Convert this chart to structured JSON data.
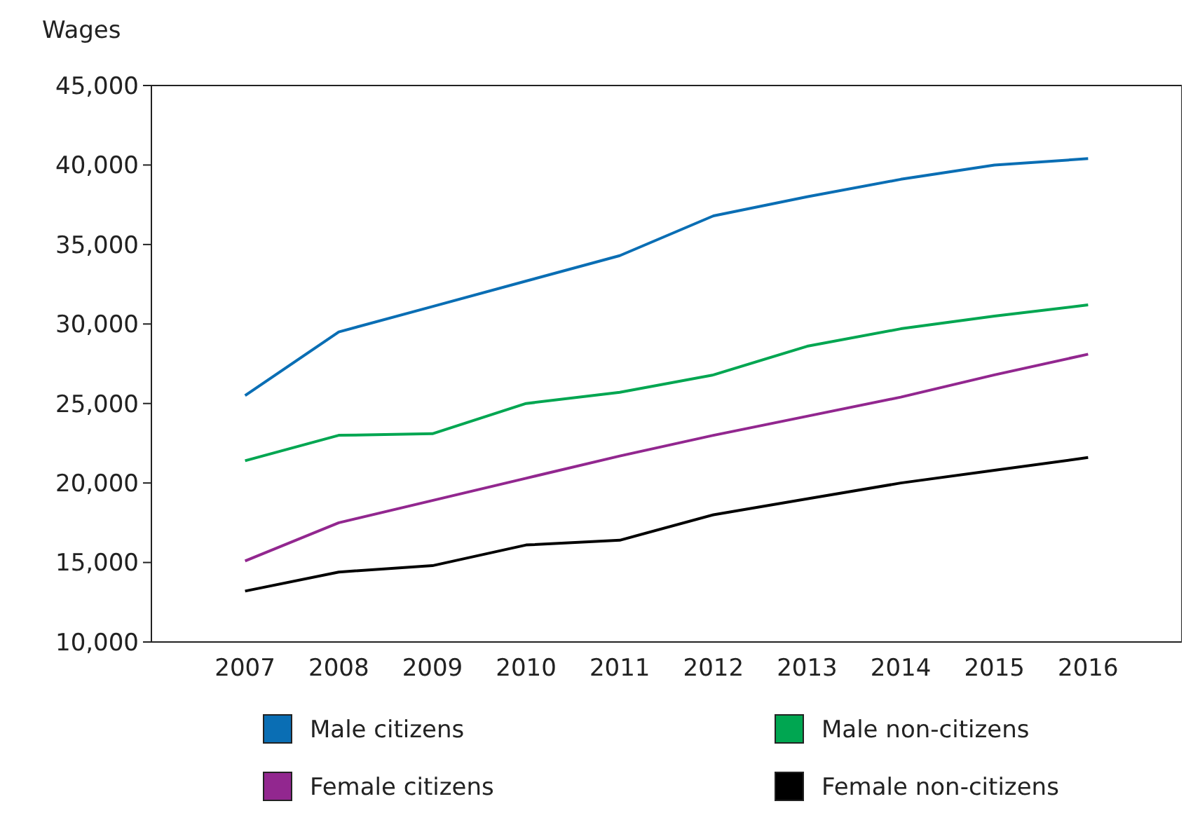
{
  "chart_data": {
    "type": "line",
    "ylabel": "Wages",
    "categories": [
      "2007",
      "2008",
      "2009",
      "2010",
      "2011",
      "2012",
      "2013",
      "2014",
      "2015",
      "2016"
    ],
    "series": [
      {
        "name": "Male citizens",
        "color": "#0a6eb4",
        "values": [
          25500,
          29500,
          31100,
          32700,
          34300,
          36800,
          38000,
          39100,
          40000,
          40400
        ]
      },
      {
        "name": "Male non-citizens",
        "color": "#00a651",
        "values": [
          21400,
          23000,
          23100,
          25000,
          25700,
          26800,
          28600,
          29700,
          30500,
          31200
        ]
      },
      {
        "name": "Female citizens",
        "color": "#92278f",
        "values": [
          15100,
          17500,
          18900,
          20300,
          21700,
          23000,
          24200,
          25400,
          26800,
          28100
        ]
      },
      {
        "name": "Female non-citizens",
        "color": "#000000",
        "values": [
          13200,
          14400,
          14800,
          16100,
          16400,
          18000,
          19000,
          20000,
          20800,
          21600
        ]
      }
    ],
    "ylim": [
      10000,
      45000
    ],
    "yticks": [
      {
        "value": 10000,
        "label": "10,000"
      },
      {
        "value": 15000,
        "label": "15,000"
      },
      {
        "value": 20000,
        "label": "20,000"
      },
      {
        "value": 25000,
        "label": "25,000"
      },
      {
        "value": 30000,
        "label": "30,000"
      },
      {
        "value": 35000,
        "label": "35,000"
      },
      {
        "value": 40000,
        "label": "40,000"
      },
      {
        "value": 45000,
        "label": "45,000"
      }
    ],
    "grid": false,
    "legend": "bottom",
    "marker": "none",
    "line_style": "solid"
  }
}
